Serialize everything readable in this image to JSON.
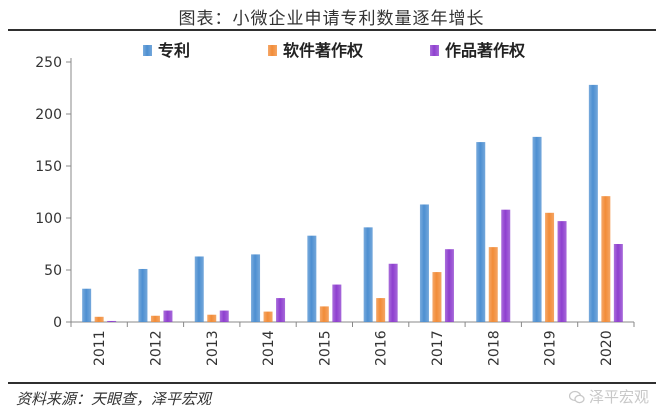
{
  "header": {
    "title": "图表：小微企业申请专利数量逐年增长"
  },
  "footer": {
    "source": "资料来源：天眼查，泽平宏观",
    "watermark": "泽平宏观"
  },
  "colors": {
    "series": [
      "#4d8fd1",
      "#f28c38",
      "#8e3fcf"
    ],
    "axis": "#888888"
  },
  "chart_data": {
    "type": "bar",
    "title": "图表：小微企业申请专利数量逐年增长",
    "xlabel": "",
    "ylabel": "",
    "categories": [
      "2011",
      "2012",
      "2013",
      "2014",
      "2015",
      "2016",
      "2017",
      "2018",
      "2019",
      "2020"
    ],
    "series": [
      {
        "name": "专利",
        "values": [
          32,
          51,
          63,
          65,
          83,
          91,
          113,
          173,
          178,
          228
        ]
      },
      {
        "name": "软件著作权",
        "values": [
          5,
          6,
          7,
          10,
          15,
          23,
          48,
          72,
          105,
          121
        ]
      },
      {
        "name": "作品著作权",
        "values": [
          1,
          11,
          11,
          23,
          36,
          56,
          70,
          108,
          97,
          75
        ]
      }
    ],
    "ylim": [
      0,
      250
    ],
    "yticks": [
      0,
      50,
      100,
      150,
      200,
      250
    ],
    "grid": false,
    "legend": "top"
  }
}
